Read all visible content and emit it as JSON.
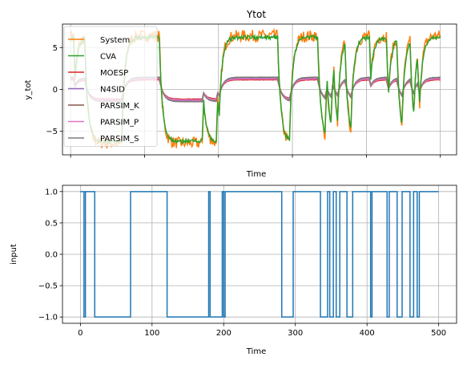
{
  "chart_data": [
    {
      "type": "line",
      "title": "Ytot",
      "xlabel": "Time",
      "ylabel": "y_tot",
      "xlim": [
        -11,
        522
      ],
      "ylim": [
        -7.8,
        7.8
      ],
      "xticks": [
        0,
        100,
        200,
        300,
        400,
        500
      ],
      "show_x_tick_labels": false,
      "yticks": [
        -5,
        0,
        5
      ],
      "ytick_labels": [
        "−5",
        "0",
        "5"
      ],
      "grid": true,
      "legend_position": "upper-left",
      "series": [
        {
          "name": "System",
          "color": "#ff7f0e",
          "role": "system"
        },
        {
          "name": "CVA",
          "color": "#2ca02c",
          "role": "cva"
        },
        {
          "name": "MOESP",
          "color": "#d62728",
          "role": "small",
          "gain": 1.15
        },
        {
          "name": "N4SID",
          "color": "#9467bd",
          "role": "small",
          "gain": 1.35
        },
        {
          "name": "PARSIM_K",
          "color": "#8c564b",
          "role": "small",
          "gain": 1.45
        },
        {
          "name": "PARSIM_P",
          "color": "#e377c2",
          "role": "small",
          "gain": 1.25
        },
        {
          "name": "PARSIM_S",
          "color": "#7f7f7f",
          "role": "small",
          "gain": 1.45
        }
      ]
    },
    {
      "type": "line",
      "xlabel": "Time",
      "ylabel": "input",
      "xlim": [
        -25,
        525
      ],
      "ylim": [
        -1.1,
        1.1
      ],
      "xticks": [
        0,
        100,
        200,
        300,
        400,
        500
      ],
      "xtick_labels": [
        "0",
        "100",
        "200",
        "300",
        "400",
        "500"
      ],
      "yticks": [
        -1.0,
        -0.5,
        0.0,
        0.5,
        1.0
      ],
      "ytick_labels": [
        "−1.0",
        "−0.5",
        "0.0",
        "0.5",
        "1.0"
      ],
      "grid": true,
      "series": [
        {
          "name": "input",
          "color": "#1f77b4",
          "steps": [
            [
              0,
              1
            ],
            [
              5,
              -1
            ],
            [
              7,
              1
            ],
            [
              20,
              -1
            ],
            [
              70,
              1
            ],
            [
              121,
              -1
            ],
            [
              179,
              1
            ],
            [
              181,
              -1
            ],
            [
              198,
              1
            ],
            [
              200,
              -1
            ],
            [
              202,
              1
            ],
            [
              281,
              -1
            ],
            [
              297,
              1
            ],
            [
              335,
              -1
            ],
            [
              345,
              1
            ],
            [
              348,
              -1
            ],
            [
              353,
              1
            ],
            [
              357,
              -1
            ],
            [
              362,
              1
            ],
            [
              372,
              -1
            ],
            [
              380,
              1
            ],
            [
              405,
              -1
            ],
            [
              407,
              1
            ],
            [
              428,
              -1
            ],
            [
              431,
              1
            ],
            [
              442,
              -1
            ],
            [
              449,
              1
            ],
            [
              460,
              -1
            ],
            [
              465,
              1
            ],
            [
              470,
              -1
            ],
            [
              473,
              1
            ],
            [
              500,
              1
            ]
          ]
        }
      ]
    }
  ]
}
